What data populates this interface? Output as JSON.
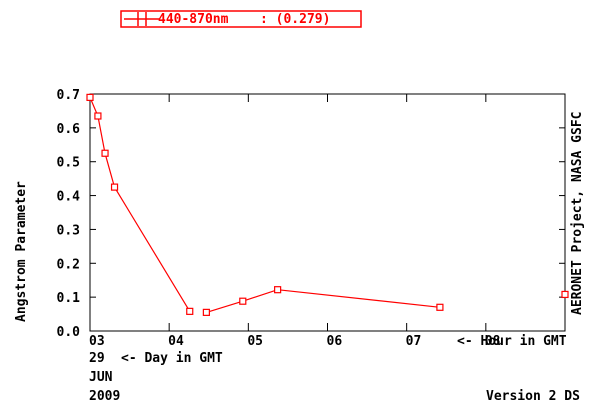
{
  "chart_data": {
    "type": "scatter",
    "x_unit": "hour (GMT), 29 JUN 2009",
    "xlim": [
      3,
      9
    ],
    "ylim": [
      0,
      0.7
    ],
    "x_ticks": [
      3,
      4,
      5,
      6,
      7,
      8
    ],
    "x_tick_labels": [
      "03",
      "04",
      "05",
      "06",
      "07",
      "08"
    ],
    "y_ticks": [
      0.0,
      0.1,
      0.2,
      0.3,
      0.4,
      0.5,
      0.6,
      0.7
    ],
    "y_tick_labels": [
      "0.0",
      "0.1",
      "0.2",
      "0.3",
      "0.4",
      "0.5",
      "0.6",
      "0.7"
    ],
    "ylabel": "Angstrom Parameter",
    "x_axis_note": "<- Hour in GMT",
    "day_label": "29",
    "day_note": "<- Day in GMT",
    "month_label": "JUN",
    "year_label": "2009",
    "right_label": "AERONET Project, NASA GSFC",
    "version_label": "Version 2 DS",
    "legend": {
      "label": "440-870nm",
      "value": ": (0.279)",
      "placement": "top-left"
    },
    "series": [
      {
        "name": "440-870nm",
        "color": "#ff0000",
        "connected_segments": [
          [
            0,
            1,
            2,
            3,
            4
          ],
          [
            5,
            6,
            7,
            8
          ]
        ],
        "points": [
          {
            "x": 3.0,
            "y": 0.69
          },
          {
            "x": 3.1,
            "y": 0.635
          },
          {
            "x": 3.19,
            "y": 0.525
          },
          {
            "x": 3.31,
            "y": 0.425
          },
          {
            "x": 4.26,
            "y": 0.058
          },
          {
            "x": 4.47,
            "y": 0.055
          },
          {
            "x": 4.93,
            "y": 0.088
          },
          {
            "x": 5.37,
            "y": 0.122
          },
          {
            "x": 7.42,
            "y": 0.07
          },
          {
            "x": 9.0,
            "y": 0.108
          }
        ]
      }
    ]
  }
}
